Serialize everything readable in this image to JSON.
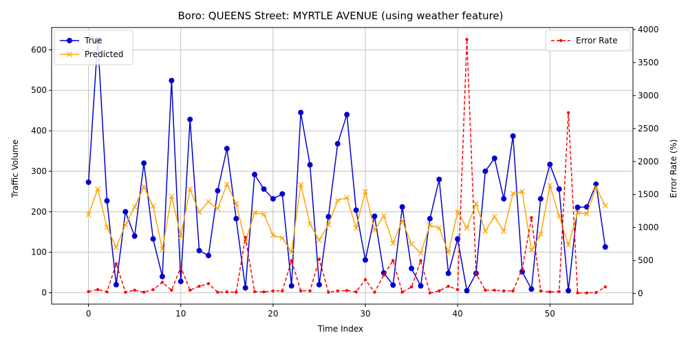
{
  "chart_data": {
    "type": "line",
    "title": "Boro: QUEENS Street: MYRTLE AVENUE (using weather feature)",
    "xlabel": "Time Index",
    "ylabel": "Traffic Volume",
    "y2label": "Error Rate (%)",
    "xlim": [
      -4,
      59
    ],
    "ylim": [
      -28,
      655
    ],
    "y2lim": [
      -160,
      4030
    ],
    "xticks": [
      0,
      10,
      20,
      30,
      40,
      50
    ],
    "yticks": [
      0,
      100,
      200,
      300,
      400,
      500,
      600
    ],
    "y2ticks": [
      0,
      500,
      1000,
      1500,
      2000,
      2500,
      3000,
      3500,
      4000
    ],
    "grid": true,
    "legend_left": {
      "placement": "top-left",
      "entries": [
        "True",
        "Predicted"
      ]
    },
    "legend_right": {
      "placement": "top-right",
      "entries": [
        "Error Rate"
      ]
    },
    "series": [
      {
        "name": "True",
        "axis": "left",
        "color": "#0000cd",
        "marker": "circle",
        "dash": "solid",
        "values": [
          273,
          624,
          227,
          20,
          200,
          140,
          320,
          133,
          40,
          524,
          28,
          428,
          104,
          92,
          252,
          356,
          183,
          12,
          292,
          256,
          232,
          244,
          17,
          445,
          316,
          20,
          188,
          368,
          440,
          204,
          81,
          189,
          49,
          19,
          212,
          60,
          17,
          183,
          280,
          48,
          133,
          5,
          48,
          300,
          332,
          232,
          387,
          52,
          9,
          232,
          317,
          256,
          5,
          211,
          212,
          268,
          113
        ]
      },
      {
        "name": "Predicted",
        "axis": "left",
        "color": "#ffa500",
        "marker": "x",
        "dash": "solid",
        "values": [
          193,
          256,
          162,
          112,
          168,
          212,
          262,
          214,
          107,
          238,
          140,
          256,
          199,
          225,
          208,
          268,
          220,
          126,
          198,
          194,
          142,
          135,
          101,
          267,
          170,
          130,
          168,
          228,
          235,
          160,
          250,
          155,
          190,
          122,
          178,
          120,
          98,
          167,
          160,
          100,
          200,
          160,
          220,
          152,
          188,
          152,
          245,
          250,
          105,
          145,
          265,
          190,
          118,
          198,
          195,
          260,
          215
        ]
      },
      {
        "name": "Error Rate",
        "axis": "right",
        "color": "#ff0000",
        "marker": "dot",
        "dash": "dashed",
        "values": [
          30,
          60,
          25,
          450,
          20,
          50,
          20,
          60,
          170,
          50,
          400,
          50,
          110,
          150,
          20,
          25,
          20,
          850,
          30,
          25,
          40,
          40,
          500,
          40,
          40,
          520,
          20,
          40,
          45,
          25,
          210,
          20,
          280,
          500,
          20,
          100,
          500,
          10,
          40,
          110,
          60,
          3850,
          300,
          50,
          50,
          40,
          40,
          370,
          1150,
          40,
          25,
          30,
          2740,
          10,
          10,
          15,
          100
        ]
      }
    ]
  }
}
